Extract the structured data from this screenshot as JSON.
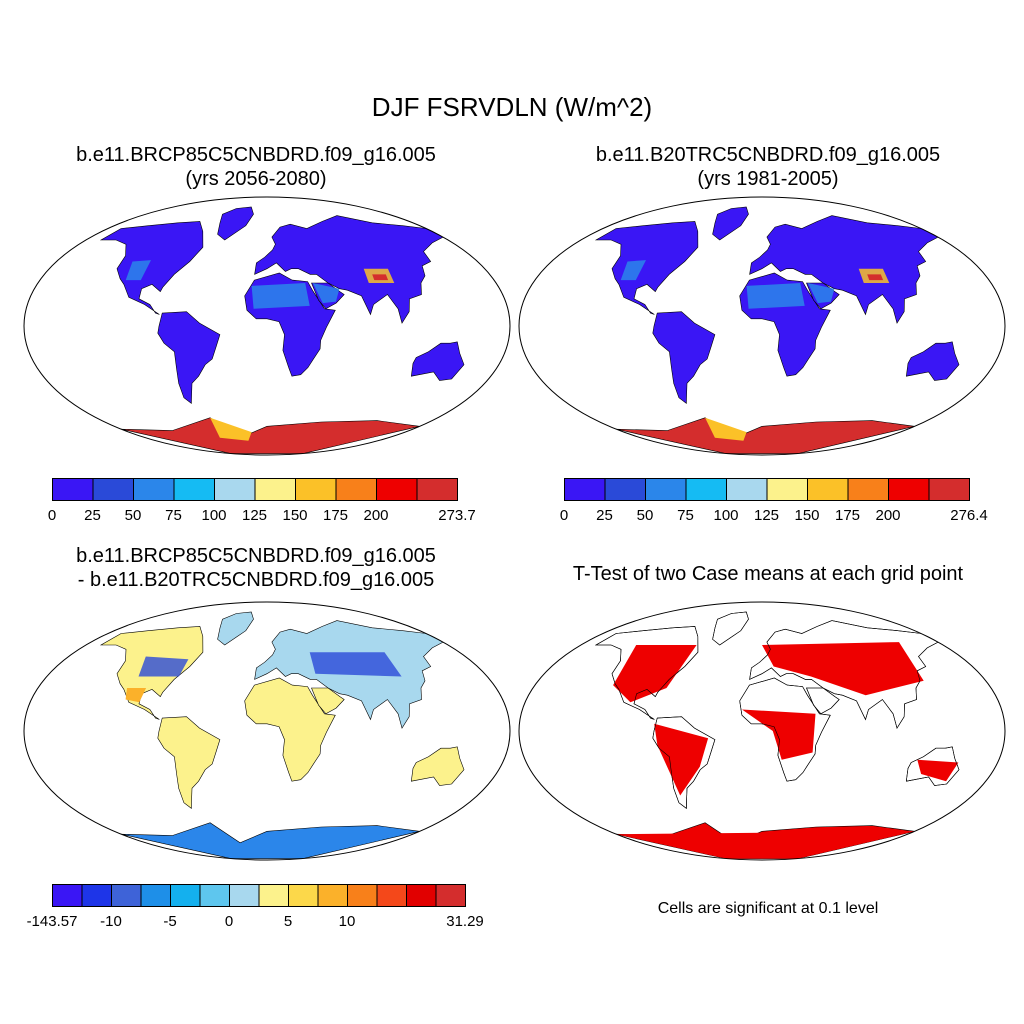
{
  "title": "DJF FSRVDLN (W/m^2)",
  "panels": [
    {
      "title_line1": "b.e11.BRCP85C5CNBDRD.f09_g16.005",
      "title_line2": "(yrs 2056-2080)"
    },
    {
      "title_line1": "b.e11.B20TRC5CNBDRD.f09_g16.005",
      "title_line2": "(yrs 1981-2005)"
    },
    {
      "title_line1": "b.e11.BRCP85C5CNBDRD.f09_g16.005",
      "title_line2": "- b.e11.B20TRC5CNBDRD.f09_g16.005"
    },
    {
      "title_line1": "T-Test of two Case means at each grid point",
      "title_line2": ""
    }
  ],
  "colorbars": [
    {
      "colors": [
        "#3a16f5",
        "#2a4ad8",
        "#2b86ea",
        "#15bbf3",
        "#a9d8ee",
        "#fcf28c",
        "#fbc128",
        "#f8801a",
        "#ee0000",
        "#d42d2d"
      ],
      "labels": [
        "0",
        "25",
        "50",
        "75",
        "100",
        "125",
        "150",
        "175",
        "200",
        "",
        "273.7"
      ]
    },
    {
      "colors": [
        "#3a16f5",
        "#2a4ad8",
        "#2b86ea",
        "#15bbf3",
        "#a9d8ee",
        "#fcf28c",
        "#fbc128",
        "#f8801a",
        "#ee0000",
        "#d42d2d"
      ],
      "labels": [
        "0",
        "25",
        "50",
        "75",
        "100",
        "125",
        "150",
        "175",
        "200",
        "",
        "276.4"
      ]
    },
    {
      "colors": [
        "#3a16f5",
        "#1e35e8",
        "#3e63d8",
        "#1e8fe8",
        "#14b0ee",
        "#5ec6ee",
        "#a8d8ee",
        "#fcf28c",
        "#fcd84a",
        "#fbb12a",
        "#f8801a",
        "#f4481a",
        "#e10000",
        "#d42d2d"
      ],
      "labels": [
        "-143.57",
        "",
        "-10",
        "",
        "-5",
        "",
        "0",
        "",
        "5",
        "",
        "10",
        "",
        "",
        "",
        "31.29"
      ]
    }
  ],
  "map_colors": {
    "land_low": "#3a16f5",
    "land_mid": "#2b86ea",
    "land_light": "#a9d8ee",
    "diff_neutral": "#fcf28c",
    "diff_neg": "#a8d8ee",
    "significant": "#ee0000",
    "antarctica_high": "#d42d2d",
    "antarctica_mid": "#fbc128"
  },
  "footnote": "Cells are significant at 0.1 level"
}
